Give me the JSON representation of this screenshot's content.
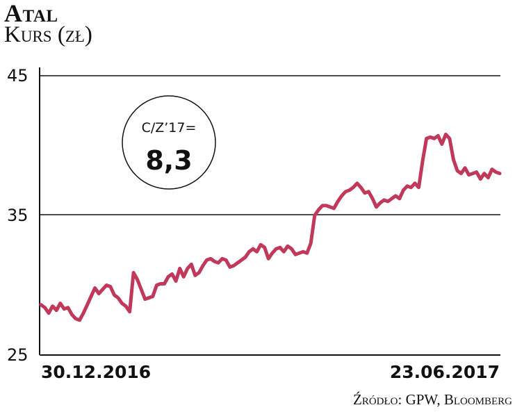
{
  "title": "Atal",
  "subtitle": "Kurs (zł)",
  "source": "Źródło: GPW, Bloomberg",
  "colors": {
    "line": "#c0385a",
    "axis": "#111111"
  },
  "callout": {
    "label": "C/Z’17=",
    "value": "8,3"
  },
  "chart_data": {
    "type": "line",
    "title": "Atal",
    "ylabel": "Kurs (zł)",
    "ylim": [
      25,
      45
    ],
    "yticks": [
      "45",
      "35",
      "25"
    ],
    "xtick_labels": [
      "30.12.2016",
      "23.06.2017"
    ],
    "grid": "horizontal at 35 and 45",
    "series": [
      {
        "values": [
          28.6,
          28.4,
          28.0,
          28.5,
          28.2,
          28.7,
          28.3,
          28.4,
          27.9,
          27.6,
          27.5,
          28.0,
          28.6,
          29.2,
          29.8,
          29.4,
          29.7,
          30.0,
          29.9,
          29.3,
          29.1,
          28.7,
          28.5,
          28.1,
          30.9,
          30.4,
          29.7,
          29.0,
          29.1,
          29.2,
          30.0,
          30.1,
          30.1,
          30.6,
          30.8,
          30.3,
          31.2,
          30.6,
          31.2,
          31.5,
          30.7,
          30.9,
          31.4,
          31.8,
          31.9,
          31.7,
          31.6,
          31.9,
          31.8,
          31.3,
          31.4,
          31.6,
          31.8,
          32.0,
          32.4,
          32.6,
          32.4,
          32.9,
          32.7,
          31.9,
          32.3,
          32.6,
          32.7,
          32.4,
          32.8,
          32.6,
          32.2,
          32.3,
          32.4,
          32.3,
          33.0,
          35.0,
          35.4,
          35.7,
          35.7,
          35.6,
          35.5,
          36.0,
          36.4,
          36.7,
          36.8,
          37.0,
          37.3,
          37.0,
          36.6,
          36.7,
          36.2,
          35.6,
          35.9,
          36.1,
          36.0,
          36.2,
          36.4,
          36.2,
          36.8,
          37.1,
          37.0,
          37.3,
          37.0,
          38.9,
          40.5,
          40.6,
          40.5,
          40.7,
          40.1,
          40.8,
          40.5,
          39.0,
          38.2,
          38.0,
          38.4,
          37.9,
          38.0,
          38.1,
          37.6,
          38.0,
          37.7,
          38.3,
          38.1,
          38.0
        ]
      }
    ]
  }
}
